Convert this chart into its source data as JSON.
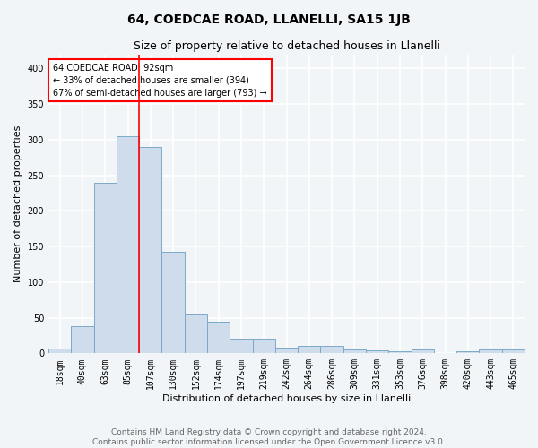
{
  "title": "64, COEDCAE ROAD, LLANELLI, SA15 1JB",
  "subtitle": "Size of property relative to detached houses in Llanelli",
  "xlabel": "Distribution of detached houses by size in Llanelli",
  "ylabel": "Number of detached properties",
  "bin_labels": [
    "18sqm",
    "40sqm",
    "63sqm",
    "85sqm",
    "107sqm",
    "130sqm",
    "152sqm",
    "174sqm",
    "197sqm",
    "219sqm",
    "242sqm",
    "264sqm",
    "286sqm",
    "309sqm",
    "331sqm",
    "353sqm",
    "376sqm",
    "398sqm",
    "420sqm",
    "443sqm",
    "465sqm"
  ],
  "bar_heights": [
    7,
    38,
    240,
    305,
    290,
    142,
    54,
    44,
    20,
    20,
    8,
    10,
    11,
    5,
    4,
    3,
    5,
    0,
    3,
    5,
    5
  ],
  "bar_color": "#cfdceb",
  "bar_edge_color": "#7aaac8",
  "red_line_bin": 3,
  "annotation_text": "64 COEDCAE ROAD: 92sqm\n← 33% of detached houses are smaller (394)\n67% of semi-detached houses are larger (793) →",
  "annotation_box_color": "white",
  "annotation_box_edge": "red",
  "vline_color": "red",
  "ylim": [
    0,
    420
  ],
  "yticks": [
    0,
    50,
    100,
    150,
    200,
    250,
    300,
    350,
    400
  ],
  "footer": "Contains HM Land Registry data © Crown copyright and database right 2024.\nContains public sector information licensed under the Open Government Licence v3.0.",
  "bg_color": "#f2f5f8",
  "plot_bg_color": "#f2f5f8",
  "grid_color": "white",
  "title_fontsize": 10,
  "subtitle_fontsize": 9,
  "axis_label_fontsize": 8,
  "tick_fontsize": 7,
  "footer_fontsize": 6.5
}
